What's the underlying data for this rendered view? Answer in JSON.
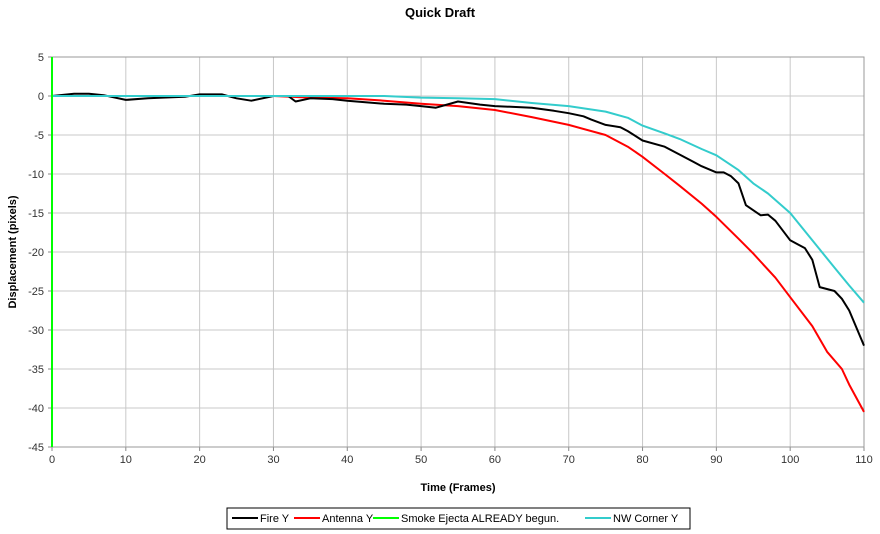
{
  "chart_data": {
    "type": "line",
    "title": "Quick Draft",
    "xlabel": "Time (Frames)",
    "ylabel": "Displacement (pixels)",
    "xlim": [
      0,
      110
    ],
    "ylim": [
      -45,
      5
    ],
    "xticks": [
      0,
      10,
      20,
      30,
      40,
      50,
      60,
      70,
      80,
      90,
      100,
      110
    ],
    "yticks": [
      5,
      0,
      -5,
      -10,
      -15,
      -20,
      -25,
      -30,
      -35,
      -40,
      -45
    ],
    "grid": true,
    "legend_position": "bottom",
    "series": [
      {
        "name": "Fire Y",
        "color": "#000000",
        "x": [
          0,
          3,
          5,
          7,
          10,
          13,
          15,
          18,
          20,
          23,
          25,
          27,
          30,
          32,
          33,
          35,
          38,
          40,
          45,
          48,
          50,
          52,
          55,
          58,
          60,
          65,
          68,
          70,
          72,
          73,
          75,
          77,
          78,
          80,
          83,
          85,
          87,
          88,
          90,
          91,
          92,
          93,
          94,
          96,
          97,
          98,
          100,
          101,
          102,
          103,
          104,
          106,
          107,
          108,
          110
        ],
        "y": [
          0,
          0.3,
          0.3,
          0.1,
          -0.5,
          -0.3,
          -0.2,
          -0.1,
          0.2,
          0.2,
          -0.3,
          -0.6,
          0,
          0,
          -0.7,
          -0.3,
          -0.4,
          -0.6,
          -1,
          -1.1,
          -1.3,
          -1.5,
          -0.7,
          -1.1,
          -1.3,
          -1.5,
          -1.9,
          -2.2,
          -2.6,
          -3,
          -3.7,
          -4,
          -4.5,
          -5.7,
          -6.5,
          -7.5,
          -8.5,
          -9,
          -9.8,
          -9.8,
          -10.3,
          -11.2,
          -14,
          -15.3,
          -15.2,
          -16,
          -18.5,
          -19,
          -19.5,
          -21,
          -24.5,
          -25,
          -26,
          -27.5,
          -32
        ]
      },
      {
        "name": "Antenna Y",
        "color": "#ff0000",
        "x": [
          0,
          10,
          20,
          30,
          35,
          40,
          45,
          50,
          55,
          60,
          65,
          70,
          75,
          78,
          80,
          83,
          85,
          88,
          90,
          93,
          95,
          98,
          100,
          103,
          105,
          107,
          108,
          110
        ],
        "y": [
          0,
          0,
          0,
          0,
          -0.2,
          -0.3,
          -0.6,
          -1,
          -1.3,
          -1.8,
          -2.7,
          -3.7,
          -5,
          -6.5,
          -7.8,
          -10,
          -11.5,
          -13.8,
          -15.5,
          -18.3,
          -20.2,
          -23.3,
          -25.8,
          -29.5,
          -32.8,
          -35,
          -37,
          -40.5
        ]
      },
      {
        "name": "Smoke Ejecta ALREADY begun.",
        "color": "#00ff00",
        "x": [
          0,
          0
        ],
        "y": [
          5,
          -45
        ]
      },
      {
        "name": "NW Corner Y",
        "color": "#33cccc",
        "x": [
          0,
          10,
          20,
          30,
          40,
          45,
          50,
          55,
          60,
          65,
          70,
          75,
          78,
          80,
          83,
          85,
          88,
          90,
          93,
          95,
          97,
          100,
          103,
          106,
          108,
          110
        ],
        "y": [
          0,
          0,
          0,
          0,
          0,
          0,
          -0.2,
          -0.3,
          -0.4,
          -0.9,
          -1.3,
          -2,
          -2.8,
          -3.8,
          -4.8,
          -5.5,
          -6.8,
          -7.6,
          -9.5,
          -11.2,
          -12.5,
          -15,
          -18.5,
          -22,
          -24.3,
          -26.5
        ]
      }
    ]
  }
}
